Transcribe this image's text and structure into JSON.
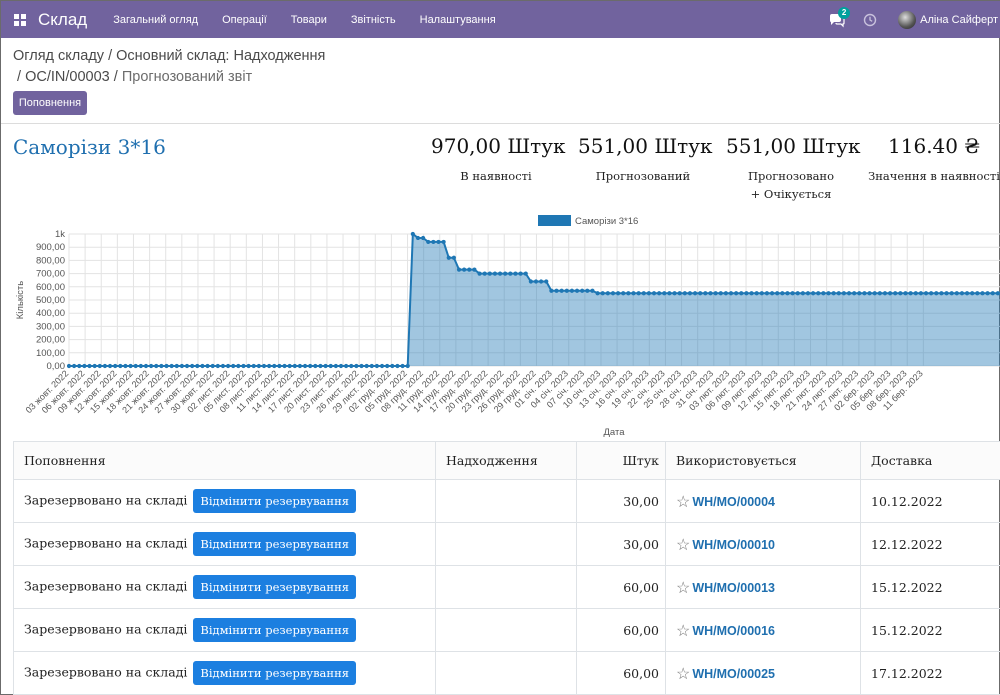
{
  "navbar": {
    "app_title": "Склад",
    "menu": [
      "Загальний огляд",
      "Операції",
      "Товари",
      "Звітність",
      "Налаштування"
    ],
    "chat_count": "2",
    "user_name": "Аліна Сайферт"
  },
  "breadcrumb": {
    "items": [
      "Огляд складу",
      "Основний склад: Надходження",
      "OC/IN/00003"
    ],
    "active": "Прогнозований звіт"
  },
  "actions": {
    "replenish_label": "Поповнення"
  },
  "product": {
    "name": "Саморізи 3*16"
  },
  "stats": [
    {
      "value": "970,00 Штук",
      "label": "В наявності"
    },
    {
      "value": "551,00 Штук",
      "label": "Прогнозований"
    },
    {
      "value": "551,00 Штук",
      "label": "Прогнозовано + Очікується"
    },
    {
      "value": "116.40 ₴",
      "label": "Значення в наявності"
    }
  ],
  "chart_data": {
    "type": "area",
    "legend": "Саморізи 3*16",
    "legend_position": "top-center",
    "xlabel": "Дата",
    "ylabel": "Кількість",
    "ylim": [
      0,
      1000
    ],
    "yticks": [
      "0,00",
      "100,00",
      "200,00",
      "300,00",
      "400,00",
      "500,00",
      "600,00",
      "700,00",
      "800,00",
      "900,00",
      "1k"
    ],
    "x_tick_labels": [
      "03 жовт. 2022",
      "06 жовт. 2022",
      "09 жовт. 2022",
      "12 жовт. 2022",
      "15 жовт. 2022",
      "18 жовт. 2022",
      "21 жовт. 2022",
      "24 жовт. 2022",
      "27 жовт. 2022",
      "30 жовт. 2022",
      "02 лист. 2022",
      "05 лист. 2022",
      "08 лист. 2022",
      "11 лист. 2022",
      "14 лист. 2022",
      "17 лист. 2022",
      "20 лист. 2022",
      "23 лист. 2022",
      "26 лист. 2022",
      "29 лист. 2022",
      "02 груд. 2022",
      "05 груд. 2022",
      "08 груд. 2022",
      "11 груд. 2022",
      "14 груд. 2022",
      "17 груд. 2022",
      "20 груд. 2022",
      "23 груд. 2022",
      "26 груд. 2022",
      "29 груд. 2022",
      "01 січ. 2023",
      "04 січ. 2023",
      "07 січ. 2023",
      "10 січ. 2023",
      "13 січ. 2023",
      "16 січ. 2023",
      "19 січ. 2023",
      "22 січ. 2023",
      "25 січ. 2023",
      "28 січ. 2023",
      "31 січ. 2023",
      "03 лют. 2023",
      "06 лют. 2023",
      "09 лют. 2023",
      "12 лют. 2023",
      "15 лют. 2023",
      "18 лют. 2023",
      "21 лют. 2023",
      "24 лют. 2023",
      "27 лют. 2023",
      "02 бер. 2023",
      "05 бер. 2023",
      "08 бер. 2023",
      "11 бер. 2023"
    ],
    "series": [
      {
        "name": "Саморізи 3*16",
        "color": "#1f77b4",
        "values": [
          0,
          0,
          0,
          0,
          0,
          0,
          0,
          0,
          0,
          0,
          0,
          0,
          0,
          0,
          0,
          0,
          0,
          0,
          0,
          0,
          0,
          0,
          0,
          0,
          0,
          0,
          0,
          0,
          0,
          0,
          0,
          0,
          0,
          0,
          0,
          0,
          0,
          0,
          0,
          0,
          0,
          0,
          0,
          0,
          0,
          0,
          0,
          0,
          0,
          0,
          0,
          0,
          0,
          0,
          0,
          0,
          0,
          0,
          0,
          0,
          0,
          0,
          0,
          0,
          0,
          0,
          0,
          1000,
          970,
          970,
          940,
          940,
          940,
          940,
          820,
          820,
          730,
          730,
          730,
          730,
          700,
          700,
          700,
          700,
          700,
          700,
          700,
          700,
          700,
          700,
          640,
          640,
          640,
          640,
          570,
          570,
          570,
          570,
          570,
          570,
          570,
          570,
          570,
          551,
          551,
          551,
          551,
          551,
          551,
          551,
          551,
          551,
          551,
          551,
          551,
          551,
          551,
          551,
          551,
          551,
          551,
          551,
          551,
          551,
          551,
          551,
          551,
          551,
          551,
          551,
          551,
          551,
          551,
          551,
          551,
          551,
          551,
          551,
          551,
          551,
          551,
          551,
          551,
          551,
          551,
          551,
          551,
          551,
          551,
          551,
          551,
          551,
          551,
          551,
          551,
          551,
          551,
          551,
          551,
          551,
          551,
          551,
          551,
          551,
          551,
          551,
          551,
          551,
          551,
          551,
          551,
          551,
          551,
          551,
          551,
          551,
          551,
          551,
          551,
          551,
          551,
          551,
          551
        ]
      }
    ]
  },
  "table": {
    "headers": [
      "Поповнення",
      "Надходження",
      "Штук",
      "Використовується",
      "Доставка"
    ],
    "rows": [
      {
        "replenishment": "Зарезервовано на складі",
        "button": "Відмінити резервування",
        "receipt": "",
        "qty": "30,00",
        "used_by": "WH/MO/00004",
        "delivery": "10.12.2022"
      },
      {
        "replenishment": "Зарезервовано на складі",
        "button": "Відмінити резервування",
        "receipt": "",
        "qty": "30,00",
        "used_by": "WH/MO/00010",
        "delivery": "12.12.2022"
      },
      {
        "replenishment": "Зарезервовано на складі",
        "button": "Відмінити резервування",
        "receipt": "",
        "qty": "60,00",
        "used_by": "WH/MO/00013",
        "delivery": "15.12.2022"
      },
      {
        "replenishment": "Зарезервовано на складі",
        "button": "Відмінити резервування",
        "receipt": "",
        "qty": "60,00",
        "used_by": "WH/MO/00016",
        "delivery": "15.12.2022"
      },
      {
        "replenishment": "Зарезервовано на складі",
        "button": "Відмінити резервування",
        "receipt": "",
        "qty": "60,00",
        "used_by": "WH/MO/00025",
        "delivery": "17.12.2022"
      }
    ]
  }
}
